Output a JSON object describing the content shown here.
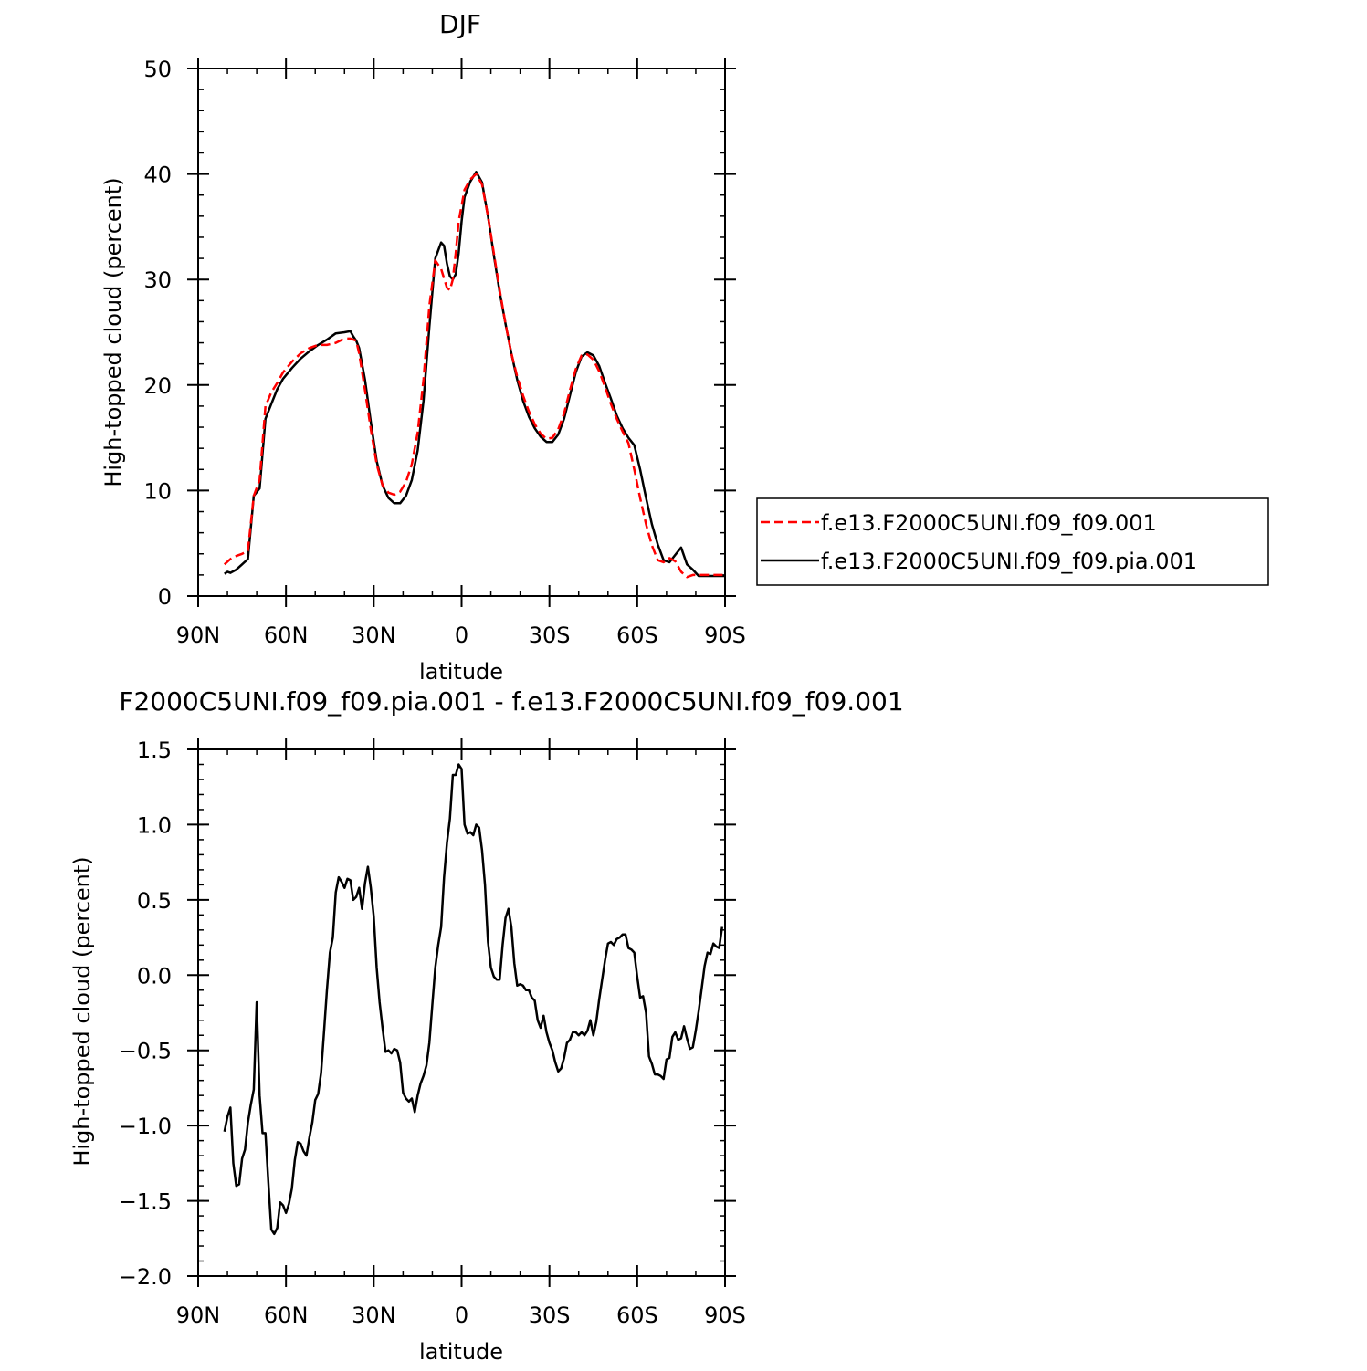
{
  "chart_data": [
    {
      "type": "line",
      "title": "DJF",
      "xlabel": "latitude",
      "ylabel": "High-topped cloud (percent)",
      "xlim": [
        90,
        -90
      ],
      "ylim": [
        0,
        50
      ],
      "x_ticks": [
        90,
        60,
        30,
        0,
        -30,
        -60,
        -90
      ],
      "x_tick_labels": [
        "90N",
        "60N",
        "30N",
        "0",
        "30S",
        "60S",
        "90S"
      ],
      "y_ticks": [
        0,
        10,
        20,
        30,
        40,
        50
      ],
      "y_tick_labels": [
        "0",
        "10",
        "20",
        "30",
        "40",
        "50"
      ],
      "legend_position": "right",
      "series": [
        {
          "name": "f.e13.F2000C5UNI.f09_f09.001",
          "color": "#ff0000",
          "dash": "dashed",
          "x": [
            81,
            79,
            77,
            75,
            73,
            71,
            69,
            67,
            65,
            63,
            61,
            58,
            55,
            52,
            49,
            46,
            43,
            40,
            38,
            36,
            35,
            33,
            31,
            29,
            27,
            25,
            23,
            21,
            19,
            17,
            15,
            13,
            11,
            9,
            7,
            5,
            4,
            3,
            2,
            1,
            0,
            -1,
            -3,
            -5,
            -7,
            -8,
            -9,
            -11,
            -13,
            -15,
            -17,
            -19,
            -21,
            -23,
            -25,
            -27,
            -29,
            -31,
            -33,
            -35,
            -37,
            -39,
            -41,
            -43,
            -45,
            -47,
            -49,
            -51,
            -53,
            -55,
            -57,
            -59,
            -61,
            -63,
            -65,
            -67,
            -69,
            -71,
            -73,
            -75,
            -77,
            -79,
            -81,
            -83,
            -85,
            -86,
            -87,
            -89,
            -90
          ],
          "y": [
            3.0,
            3.5,
            3.8,
            4.0,
            4.3,
            9.5,
            11.0,
            18.0,
            19.3,
            20.2,
            21.2,
            22.2,
            23.0,
            23.5,
            23.8,
            23.8,
            24.0,
            24.4,
            24.4,
            24.2,
            23.0,
            19.5,
            15.8,
            12.5,
            10.5,
            9.8,
            9.6,
            9.9,
            10.8,
            12.5,
            15.5,
            20.5,
            27.5,
            31.8,
            31.0,
            29.2,
            29.0,
            30.0,
            32.5,
            35.5,
            37.0,
            38.5,
            39.5,
            40.0,
            39.0,
            37.5,
            36.0,
            32.5,
            29.0,
            25.8,
            23.0,
            20.8,
            19.0,
            17.5,
            16.3,
            15.4,
            14.9,
            15.0,
            15.8,
            17.3,
            19.5,
            21.5,
            22.8,
            22.9,
            22.4,
            21.3,
            19.8,
            18.2,
            16.8,
            15.6,
            14.5,
            12.0,
            9.3,
            6.8,
            4.8,
            3.4,
            3.2,
            3.6,
            3.3,
            2.3,
            1.8,
            2.0,
            2.0,
            2.0,
            2.0,
            2.0,
            2.0,
            2.0,
            2.0
          ],
          "note_x_units": "degrees latitude (positive N)"
        },
        {
          "name": "f.e13.F2000C5UNI.f09_f09.pia.001",
          "color": "#000000",
          "dash": "solid",
          "x": [
            81,
            80,
            79,
            77,
            75,
            73,
            71,
            69,
            67,
            65,
            63,
            61,
            58,
            55,
            52,
            49,
            46,
            43,
            40,
            38,
            37,
            36,
            35,
            33,
            31,
            29,
            27,
            25,
            23,
            21,
            19,
            17,
            15,
            13,
            11,
            9,
            7,
            6,
            5,
            4,
            3,
            2,
            1,
            0,
            -1,
            -3,
            -5,
            -7,
            -8,
            -9,
            -11,
            -13,
            -15,
            -17,
            -19,
            -21,
            -23,
            -25,
            -27,
            -29,
            -31,
            -33,
            -35,
            -37,
            -39,
            -41,
            -43,
            -45,
            -47,
            -49,
            -51,
            -53,
            -55,
            -57,
            -59,
            -61,
            -63,
            -65,
            -67,
            -69,
            -71,
            -73,
            -75,
            -77,
            -79,
            -81,
            -83,
            -85,
            -86,
            -87,
            -89,
            -90
          ],
          "y": [
            2.1,
            2.3,
            2.2,
            2.5,
            3.0,
            3.5,
            9.5,
            10.2,
            16.8,
            18.2,
            19.6,
            20.6,
            21.6,
            22.5,
            23.2,
            23.8,
            24.3,
            24.9,
            25.0,
            25.1,
            24.6,
            24.2,
            23.5,
            20.5,
            16.5,
            12.8,
            10.5,
            9.3,
            8.8,
            8.8,
            9.5,
            11.0,
            13.8,
            18.5,
            25.5,
            32.0,
            33.5,
            33.2,
            31.5,
            30.3,
            30.0,
            30.5,
            32.5,
            35.5,
            37.8,
            39.3,
            40.2,
            39.2,
            37.6,
            36.0,
            32.3,
            28.8,
            25.8,
            23.0,
            20.5,
            18.5,
            17.0,
            15.9,
            15.1,
            14.6,
            14.6,
            15.3,
            16.8,
            19.0,
            21.2,
            22.7,
            23.1,
            22.8,
            21.8,
            20.2,
            18.7,
            17.1,
            15.9,
            15.0,
            14.3,
            12.0,
            9.3,
            6.8,
            4.9,
            3.4,
            3.2,
            3.9,
            4.6,
            3.0,
            2.5,
            1.9,
            1.9,
            1.9,
            1.9,
            1.9,
            1.9,
            1.9
          ],
          "note_x_units": "degrees latitude (positive N)"
        }
      ]
    },
    {
      "type": "line",
      "title": "f.e13.F2000C5UNI.f09_f09.pia.001 - f.e13.F2000C5UNI.f09_f09.001",
      "title_visible": "F2000C5UNI.f09_f09.pia.001  -  f.e13.F2000C5UNI.f09_f09.001",
      "xlabel": "latitude",
      "ylabel": "High-topped cloud (percent)",
      "xlim": [
        90,
        -90
      ],
      "ylim": [
        -2.0,
        1.5
      ],
      "x_ticks": [
        90,
        60,
        30,
        0,
        -30,
        -60,
        -90
      ],
      "x_tick_labels": [
        "90N",
        "60N",
        "30N",
        "0",
        "30S",
        "60S",
        "90S"
      ],
      "y_ticks": [
        -2.0,
        -1.5,
        -1.0,
        -0.5,
        0.0,
        0.5,
        1.0,
        1.5
      ],
      "y_tick_labels": [
        "−2.0",
        "−1.5",
        "−1.0",
        "−0.5",
        "0.0",
        "0.5",
        "1.0",
        "1.5"
      ],
      "series": [
        {
          "color": "#000000",
          "dash": "solid",
          "x": [
            81,
            80,
            79,
            78,
            77,
            76,
            75,
            74,
            73,
            72,
            71,
            70,
            69,
            68,
            67,
            66,
            65,
            64,
            63,
            62,
            61,
            60,
            59,
            58,
            57,
            56,
            55,
            54,
            53,
            52,
            51,
            50,
            49,
            48,
            47,
            46,
            45,
            44,
            43,
            42,
            41,
            40,
            39,
            38,
            37,
            36,
            35,
            34,
            33,
            32,
            31,
            30,
            29,
            28,
            27,
            26,
            25,
            24,
            23,
            22,
            21,
            20,
            19,
            18,
            17,
            16,
            15,
            14,
            13,
            12,
            11,
            10,
            9,
            8,
            7,
            6,
            5,
            4,
            3,
            2,
            1,
            0,
            -1,
            -2,
            -3,
            -4,
            -5,
            -6,
            -7,
            -8,
            -9,
            -10,
            -11,
            -12,
            -13,
            -14,
            -15,
            -16,
            -17,
            -18,
            -19,
            -20,
            -21,
            -22,
            -23,
            -24,
            -25,
            -26,
            -27,
            -28,
            -29,
            -30,
            -31,
            -32,
            -33,
            -34,
            -35,
            -36,
            -37,
            -38,
            -39,
            -40,
            -41,
            -42,
            -43,
            -44,
            -45,
            -46,
            -47,
            -48,
            -49,
            -50,
            -51,
            -52,
            -53,
            -54,
            -55,
            -56,
            -57,
            -58,
            -59,
            -60,
            -61,
            -62,
            -63,
            -64,
            -65,
            -66,
            -67,
            -68,
            -69,
            -70,
            -71,
            -72,
            -73,
            -74,
            -75,
            -76,
            -77,
            -78,
            -79,
            -80,
            -81,
            -82,
            -83,
            -84,
            -85,
            -86,
            -87,
            -88,
            -89
          ],
          "y": [
            -1.04,
            -0.94,
            -0.88,
            -1.25,
            -1.4,
            -1.39,
            -1.22,
            -1.16,
            -0.98,
            -0.86,
            -0.76,
            -0.18,
            -0.8,
            -1.05,
            -1.05,
            -1.38,
            -1.69,
            -1.72,
            -1.68,
            -1.51,
            -1.53,
            -1.58,
            -1.52,
            -1.42,
            -1.23,
            -1.11,
            -1.12,
            -1.17,
            -1.2,
            -1.08,
            -0.98,
            -0.83,
            -0.79,
            -0.65,
            -0.38,
            -0.1,
            0.15,
            0.25,
            0.55,
            0.65,
            0.62,
            0.58,
            0.64,
            0.63,
            0.5,
            0.52,
            0.58,
            0.44,
            0.61,
            0.72,
            0.58,
            0.39,
            0.05,
            -0.18,
            -0.35,
            -0.51,
            -0.5,
            -0.52,
            -0.49,
            -0.5,
            -0.58,
            -0.78,
            -0.82,
            -0.84,
            -0.82,
            -0.91,
            -0.8,
            -0.72,
            -0.67,
            -0.6,
            -0.45,
            -0.2,
            0.05,
            0.2,
            0.32,
            0.65,
            0.88,
            1.04,
            1.33,
            1.33,
            1.4,
            1.37,
            1.0,
            0.94,
            0.95,
            0.93,
            1.0,
            0.98,
            0.83,
            0.6,
            0.22,
            0.05,
            -0.01,
            -0.03,
            -0.03,
            0.2,
            0.38,
            0.44,
            0.32,
            0.08,
            -0.07,
            -0.06,
            -0.07,
            -0.1,
            -0.1,
            -0.15,
            -0.17,
            -0.3,
            -0.35,
            -0.27,
            -0.38,
            -0.45,
            -0.5,
            -0.58,
            -0.64,
            -0.62,
            -0.55,
            -0.45,
            -0.43,
            -0.38,
            -0.38,
            -0.4,
            -0.38,
            -0.4,
            -0.37,
            -0.3,
            -0.4,
            -0.31,
            -0.16,
            -0.03,
            0.1,
            0.21,
            0.22,
            0.2,
            0.24,
            0.25,
            0.27,
            0.27,
            0.18,
            0.17,
            0.15,
            -0.01,
            -0.15,
            -0.14,
            -0.25,
            -0.54,
            -0.59,
            -0.66,
            -0.66,
            -0.67,
            -0.69,
            -0.56,
            -0.55,
            -0.41,
            -0.38,
            -0.43,
            -0.42,
            -0.34,
            -0.42,
            -0.49,
            -0.48,
            -0.37,
            -0.24,
            -0.09,
            0.06,
            0.15,
            0.14,
            0.21,
            0.19,
            0.18,
            0.32
          ],
          "note_x_units": "degrees latitude (positive N)"
        }
      ]
    }
  ]
}
